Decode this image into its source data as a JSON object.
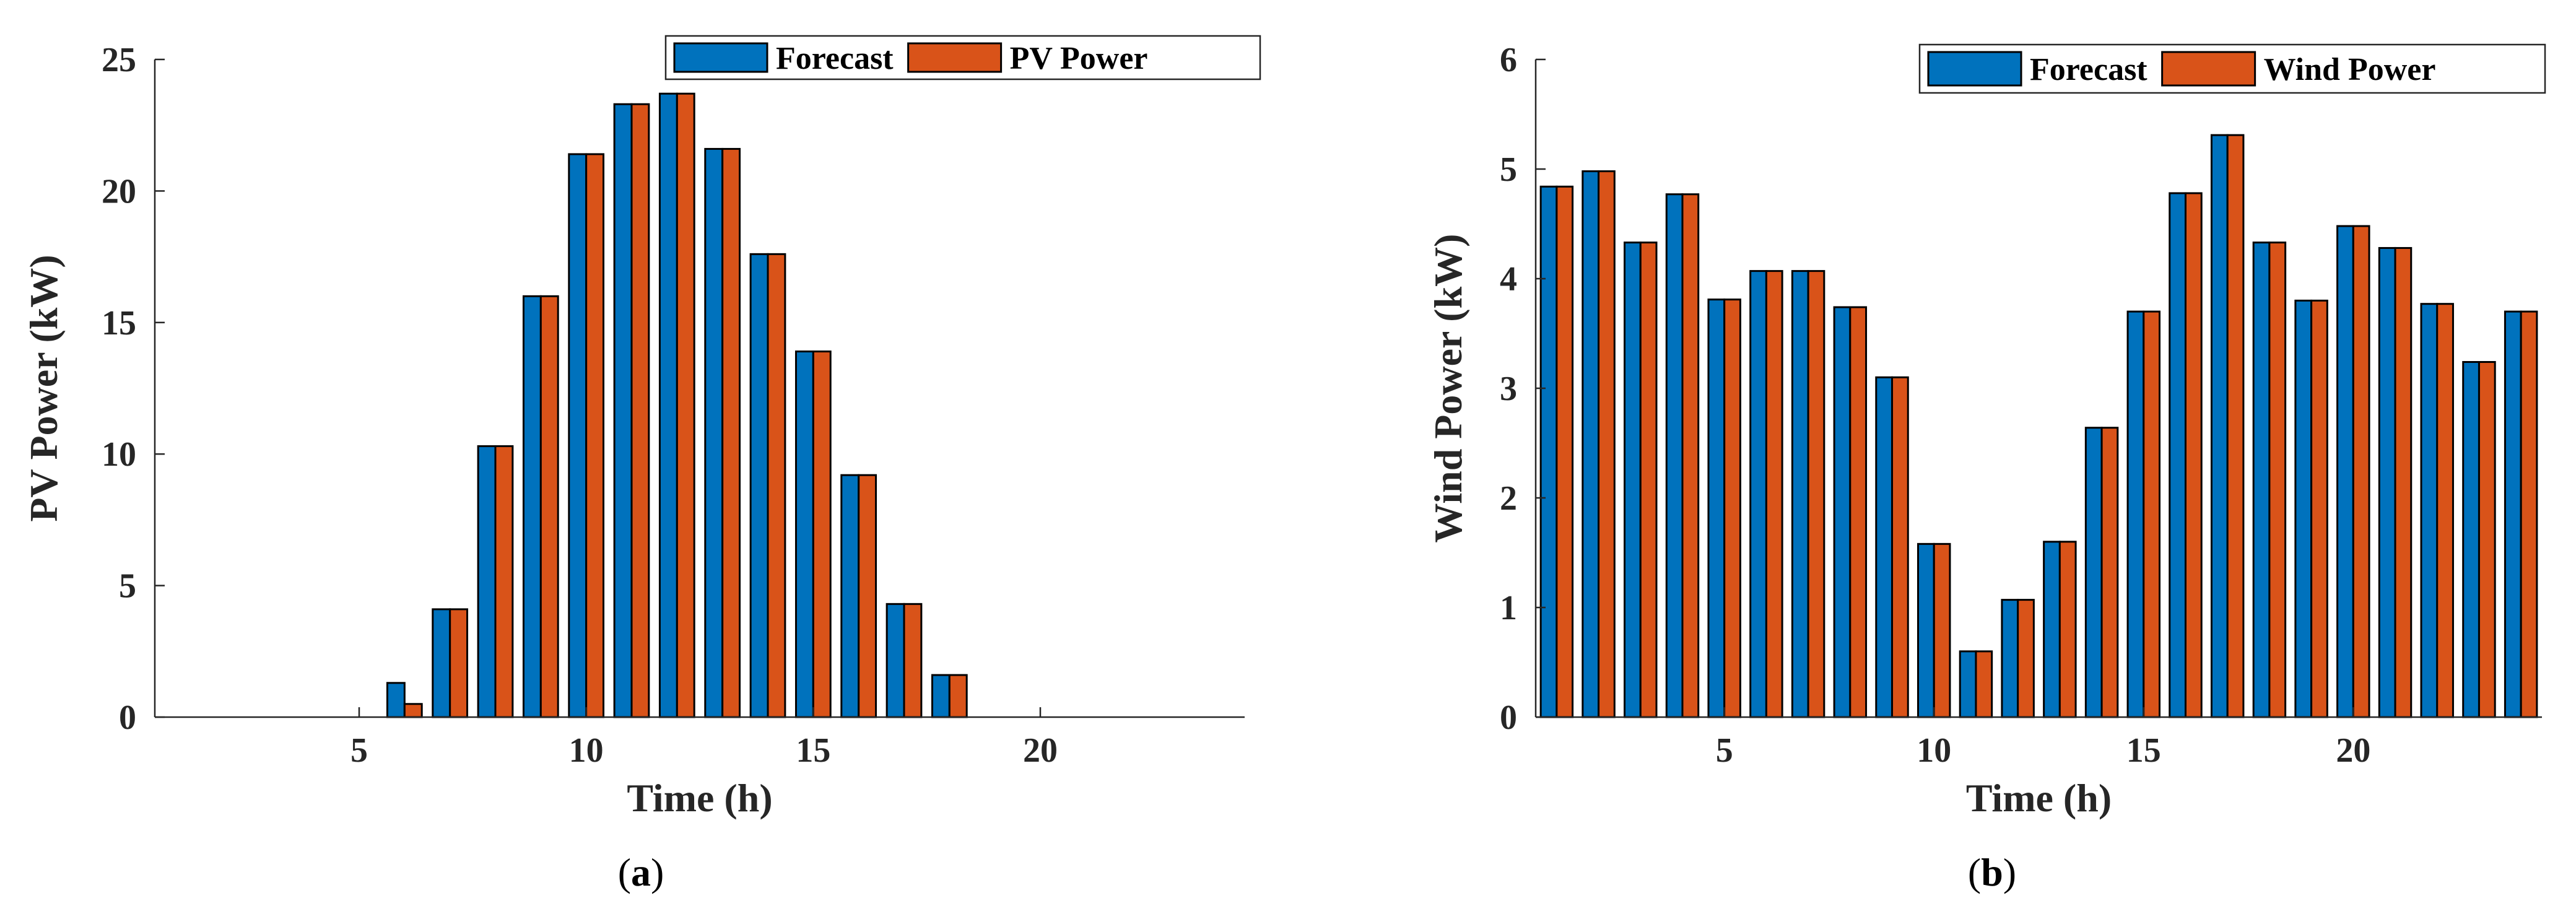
{
  "chart_data": [
    {
      "id": "a",
      "type": "bar",
      "panel_label": "a",
      "xlabel": "Time (h)",
      "ylabel": "PV Power (kW)",
      "xlim": [
        0.5,
        24.5
      ],
      "ylim": [
        0,
        25
      ],
      "xticks": [
        5,
        10,
        15,
        20
      ],
      "yticks": [
        0,
        5,
        10,
        15,
        20,
        25
      ],
      "categories": [
        1,
        2,
        3,
        4,
        5,
        6,
        7,
        8,
        9,
        10,
        11,
        12,
        13,
        14,
        15,
        16,
        17,
        18,
        19,
        20,
        21,
        22,
        23,
        24
      ],
      "series": [
        {
          "name": "Forecast",
          "color": "#0072BD",
          "values": [
            0,
            0,
            0,
            0,
            0,
            1.3,
            4.1,
            10.3,
            16.0,
            21.4,
            23.3,
            23.7,
            21.6,
            17.6,
            13.9,
            9.2,
            4.3,
            1.6,
            0,
            0,
            0,
            0,
            0,
            0
          ]
        },
        {
          "name": "PV Power",
          "color": "#D95319",
          "values": [
            0,
            0,
            0,
            0,
            0,
            0.5,
            4.1,
            10.3,
            16.0,
            21.4,
            23.3,
            23.7,
            21.6,
            17.6,
            13.9,
            9.2,
            4.3,
            1.6,
            0,
            0,
            0,
            0,
            0,
            0
          ]
        }
      ],
      "legend_position": "top-right",
      "grid": false
    },
    {
      "id": "b",
      "type": "bar",
      "panel_label": "b",
      "xlabel": "Time (h)",
      "ylabel": "Wind Power (kW)",
      "xlim": [
        0.5,
        24.5
      ],
      "ylim": [
        0,
        6
      ],
      "xticks": [
        5,
        10,
        15,
        20
      ],
      "yticks": [
        0,
        1,
        2,
        3,
        4,
        5,
        6
      ],
      "categories": [
        1,
        2,
        3,
        4,
        5,
        6,
        7,
        8,
        9,
        10,
        11,
        12,
        13,
        14,
        15,
        16,
        17,
        18,
        19,
        20,
        21,
        22,
        23,
        24
      ],
      "series": [
        {
          "name": "Forecast",
          "color": "#0072BD",
          "values": [
            4.84,
            4.98,
            4.33,
            4.77,
            3.81,
            4.07,
            4.07,
            3.74,
            3.1,
            1.58,
            0.6,
            1.07,
            1.6,
            2.64,
            3.7,
            4.78,
            5.31,
            4.33,
            3.8,
            4.48,
            4.28,
            3.77,
            3.24,
            3.7
          ]
        },
        {
          "name": "Wind Power",
          "color": "#D95319",
          "values": [
            4.84,
            4.98,
            4.33,
            4.77,
            3.81,
            4.07,
            4.07,
            3.74,
            3.1,
            1.58,
            0.6,
            1.07,
            1.6,
            2.64,
            3.7,
            4.78,
            5.31,
            4.33,
            3.8,
            4.48,
            4.28,
            3.77,
            3.24,
            3.7
          ]
        }
      ],
      "legend_position": "top-right",
      "grid": false
    }
  ]
}
